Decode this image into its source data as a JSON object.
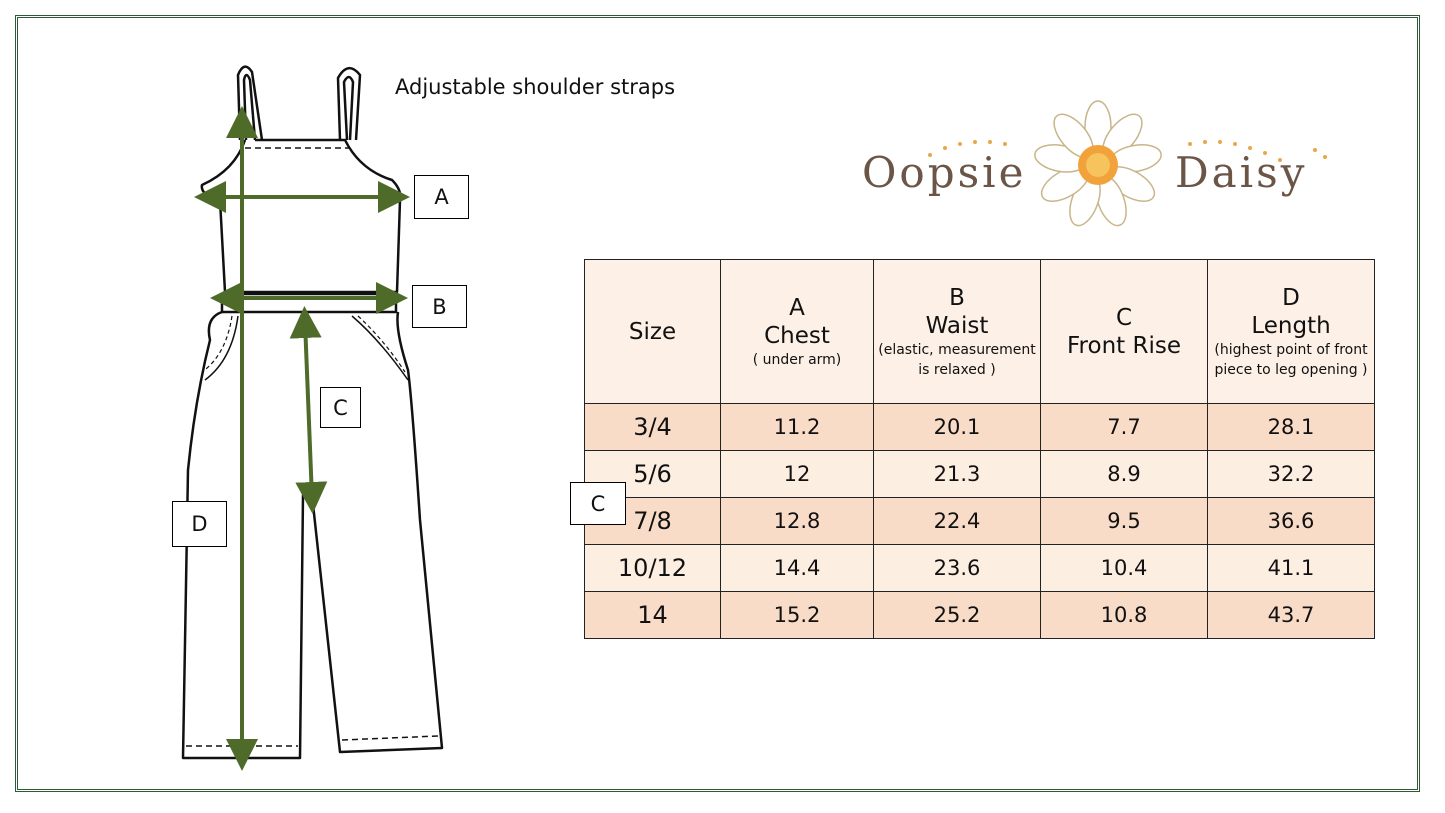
{
  "caption": "Adjustable shoulder straps",
  "labels": {
    "a": "A",
    "b": "B",
    "c": "C",
    "d": "D",
    "table_c": "C"
  },
  "logo": {
    "left": "Oopsie",
    "right": "Daisy"
  },
  "table": {
    "header": [
      {
        "name": "Size"
      },
      {
        "letter": "A",
        "name": "Chest",
        "note": "( under arm)"
      },
      {
        "letter": "B",
        "name": "Waist",
        "note": "(elastic, measurement is relaxed )"
      },
      {
        "letter": "C",
        "name": "Front Rise"
      },
      {
        "letter": "D",
        "name": "Length",
        "note": "(highest point of front piece to leg opening )"
      }
    ],
    "rows": [
      [
        "3/4",
        "11.2",
        "20.1",
        "7.7",
        "28.1"
      ],
      [
        "5/6",
        "12",
        "21.3",
        "8.9",
        "32.2"
      ],
      [
        "7/8",
        "12.8",
        "22.4",
        "9.5",
        "36.6"
      ],
      [
        "10/12",
        "14.4",
        "23.6",
        "10.4",
        "41.1"
      ],
      [
        "14",
        "15.2",
        "25.2",
        "10.8",
        "43.7"
      ]
    ]
  }
}
